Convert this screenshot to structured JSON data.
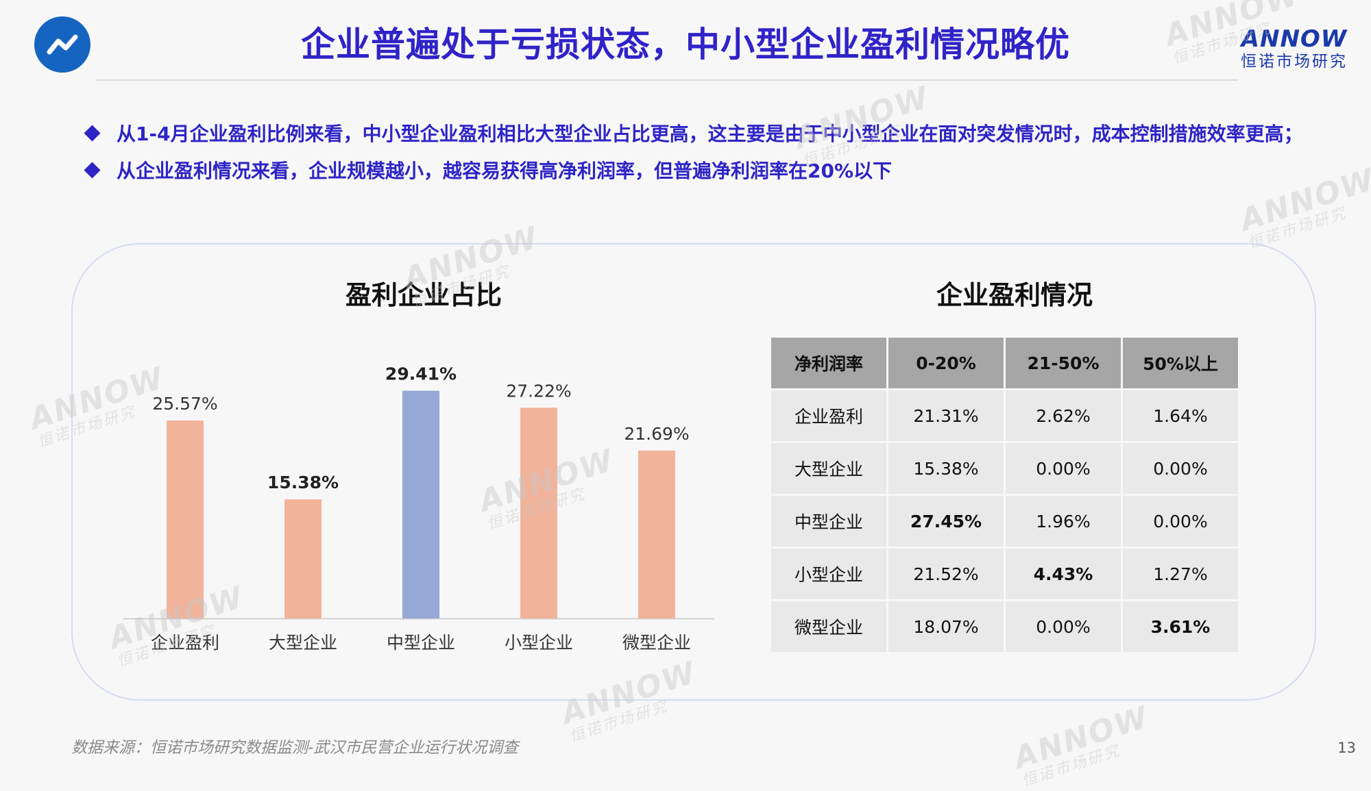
{
  "header": {
    "title": "企业普遍处于亏损状态，中小型企业盈利情况略优",
    "brand_en": "ANNOW",
    "brand_cn": "恒诺市场研究",
    "logo_icon": "trend-line-icon"
  },
  "bullets": [
    "从1-4月企业盈利比例来看，中小型企业盈利相比大型企业占比更高，这主要是由于中小型企业在面对突发情况时，成本控制措施效率更高；",
    "从企业盈利情况来看，企业规模越小，越容易获得高净利润率，但普遍净利润率在20%以下"
  ],
  "chart_title": "盈利企业占比",
  "chart_data": {
    "type": "bar",
    "title": "盈利企业占比",
    "categories": [
      "企业盈利",
      "大型企业",
      "中型企业",
      "小型企业",
      "微型企业"
    ],
    "values": [
      25.57,
      15.38,
      29.41,
      27.22,
      21.69
    ],
    "labels": [
      "25.57%",
      "15.38%",
      "29.41%",
      "27.22%",
      "21.69%"
    ],
    "bold_labels": [
      false,
      true,
      true,
      false,
      false
    ],
    "colors": [
      "#f2b39b",
      "#f2b39b",
      "#95a8d6",
      "#f2b39b",
      "#f2b39b"
    ],
    "ylim": [
      0,
      33
    ]
  },
  "table_title": "企业盈利情况",
  "table": {
    "headers": [
      "净利润率",
      "0-20%",
      "21-50%",
      "50%以上"
    ],
    "rows": [
      [
        "企业盈利",
        "21.31%",
        "2.62%",
        "1.64%"
      ],
      [
        "大型企业",
        "15.38%",
        "0.00%",
        "0.00%"
      ],
      [
        "中型企业",
        "27.45%",
        "1.96%",
        "0.00%"
      ],
      [
        "小型企业",
        "21.52%",
        "4.43%",
        "1.27%"
      ],
      [
        "微型企业",
        "18.07%",
        "0.00%",
        "3.61%"
      ]
    ]
  },
  "footer": {
    "source": "数据来源：恒诺市场研究数据监测-武汉市民营企业运行状况调查",
    "page_number": "13"
  }
}
